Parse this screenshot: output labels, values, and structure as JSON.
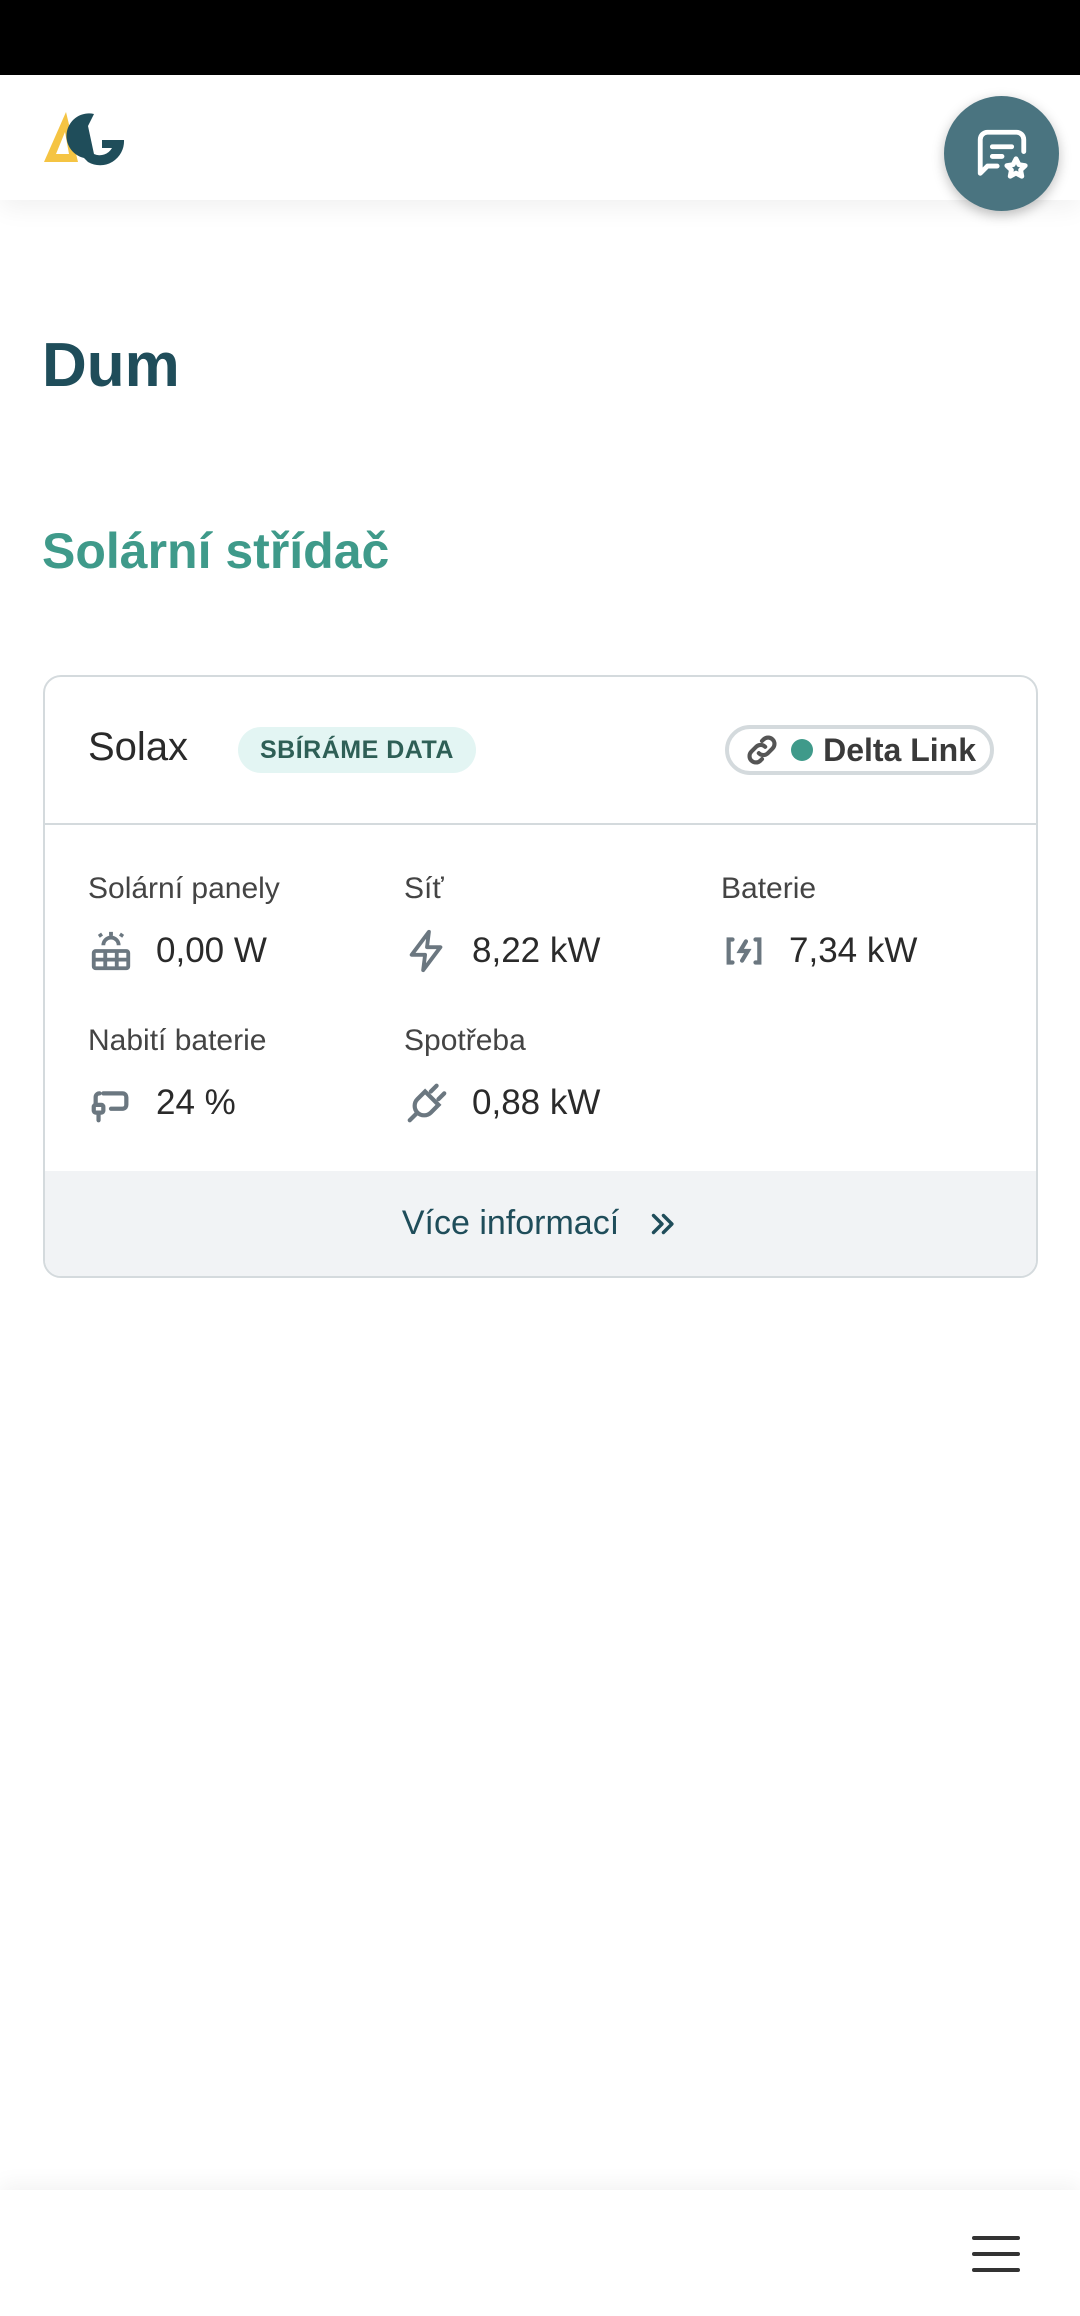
{
  "header": {
    "logo_text": "AG",
    "feedback_icon": "chat-star-icon"
  },
  "page": {
    "title": "Dum",
    "section": "Solární střídač"
  },
  "card": {
    "brand": "Solax",
    "status_badge": "SBÍRÁME DATA",
    "connection": {
      "label": "Delta Link",
      "icon": "link-icon",
      "status_color": "#3f9a8a"
    },
    "metrics": [
      {
        "label": "Solární panely",
        "value": "0,00 W",
        "icon": "solar-panel-icon"
      },
      {
        "label": "Síť",
        "value": "8,22 kW",
        "icon": "bolt-icon"
      },
      {
        "label": "Baterie",
        "value": "7,34 kW",
        "icon": "battery-charging-icon"
      },
      {
        "label": "Nabití baterie",
        "value": "24 %",
        "icon": "battery-plug-icon"
      },
      {
        "label": "Spotřeba",
        "value": "0,88 kW",
        "icon": "plug-icon"
      }
    ],
    "more_label": "Více informací"
  },
  "colors": {
    "primary": "#1f4d5a",
    "accent": "#3f9a8a",
    "fab": "#4a7480",
    "logo_yellow": "#f5c443"
  }
}
